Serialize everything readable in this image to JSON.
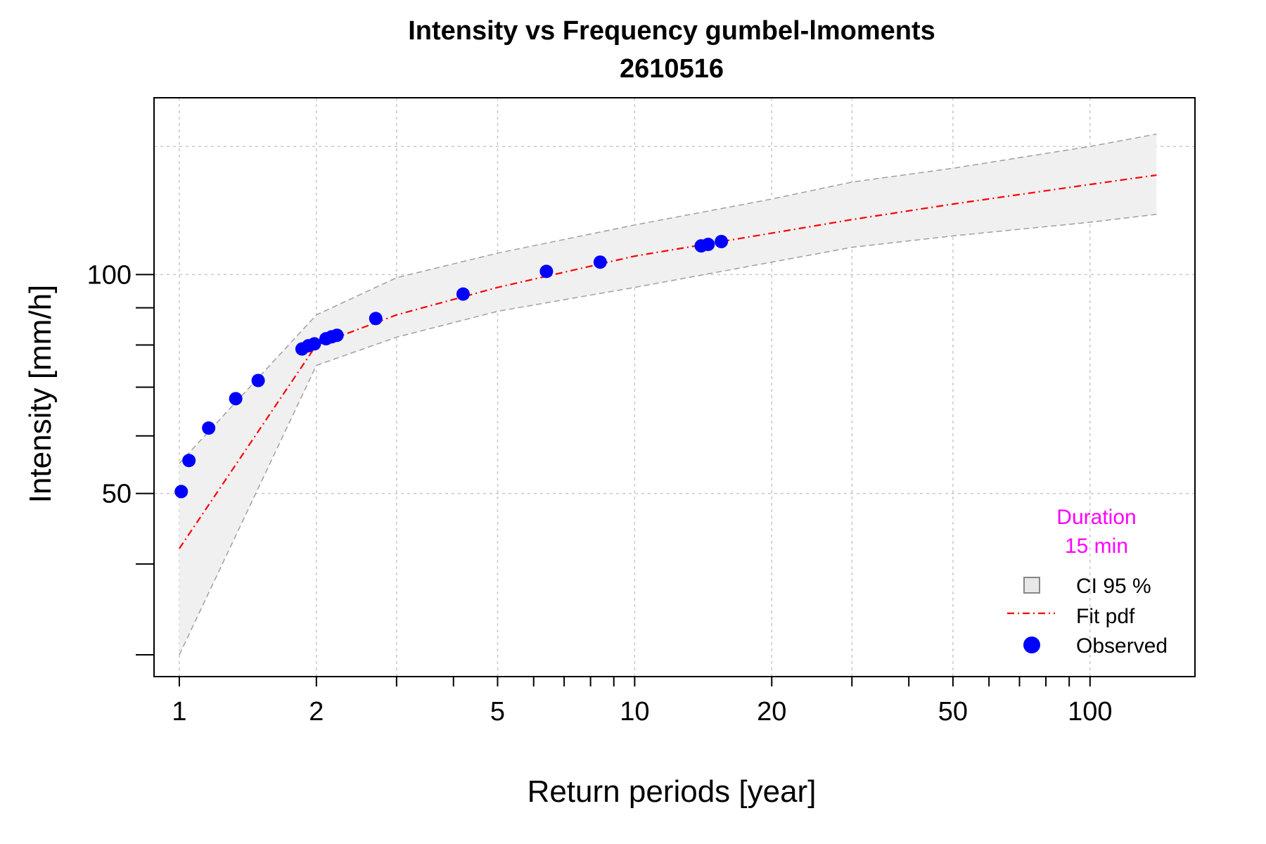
{
  "chart_data": {
    "type": "line",
    "title": "Intensity vs Frequency gumbel-lmoments",
    "subtitle": "2610516",
    "xlabel": "Return periods [year]",
    "ylabel": "Intensity [mm/h]",
    "x_scale": "log",
    "y_scale": "log",
    "xlim": [
      0.88,
      170
    ],
    "ylim": [
      28,
      175
    ],
    "x_ticks": [
      1,
      2,
      3,
      4,
      5,
      6,
      7,
      8,
      9,
      10,
      20,
      30,
      40,
      50,
      60,
      70,
      80,
      90,
      100
    ],
    "x_tick_labels": [
      {
        "value": 1,
        "label": "1"
      },
      {
        "value": 2,
        "label": "2"
      },
      {
        "value": 5,
        "label": "5"
      },
      {
        "value": 10,
        "label": "10"
      },
      {
        "value": 20,
        "label": "20"
      },
      {
        "value": 50,
        "label": "50"
      },
      {
        "value": 100,
        "label": "100"
      }
    ],
    "y_ticks": [
      30,
      40,
      50,
      60,
      70,
      80,
      90,
      100
    ],
    "y_tick_labels": [
      {
        "value": 50,
        "label": "50"
      },
      {
        "value": 100,
        "label": "100"
      }
    ],
    "x_grid": [
      1,
      2,
      3,
      5,
      10,
      20,
      30,
      50,
      100
    ],
    "y_grid": [
      50,
      100,
      150
    ],
    "grid": true,
    "series": [
      {
        "name": "CI 95 %",
        "kind": "band",
        "color": "#f0f0f0",
        "edge_color": "#a0a0a0",
        "x": [
          1,
          2,
          3,
          5,
          10,
          20,
          30,
          50,
          100,
          140
        ],
        "upper": [
          55,
          88,
          99,
          107,
          117,
          127,
          134,
          140,
          150,
          156
        ],
        "lower": [
          30,
          75,
          82,
          89,
          96,
          104,
          109,
          113,
          118,
          121
        ]
      },
      {
        "name": "Fit pdf",
        "kind": "line",
        "color": "#ff0000",
        "x": [
          1,
          2,
          3,
          5,
          10,
          20,
          30,
          50,
          100,
          140
        ],
        "y": [
          42,
          80,
          88,
          96,
          106,
          114,
          119,
          125,
          133,
          137
        ]
      },
      {
        "name": "Observed",
        "kind": "scatter",
        "color": "#0000ff",
        "x": [
          1.01,
          1.05,
          1.16,
          1.33,
          1.49,
          1.86,
          1.92,
          1.98,
          2.1,
          2.16,
          2.22,
          2.7,
          4.2,
          6.4,
          8.4,
          14.0,
          14.5,
          15.5
        ],
        "y": [
          50.3,
          55.5,
          61.5,
          67.5,
          71.5,
          79.0,
          79.8,
          80.3,
          81.6,
          82.1,
          82.5,
          87.0,
          94.0,
          101.0,
          104.0,
          109.5,
          110.0,
          111.0
        ]
      }
    ],
    "legend": {
      "placement": "bottom-right",
      "entries": [
        "CI 95 %",
        "Fit pdf",
        "Observed"
      ]
    },
    "annotation": {
      "lines": [
        "Duration",
        "15 min"
      ],
      "color": "#ff00ff"
    }
  }
}
